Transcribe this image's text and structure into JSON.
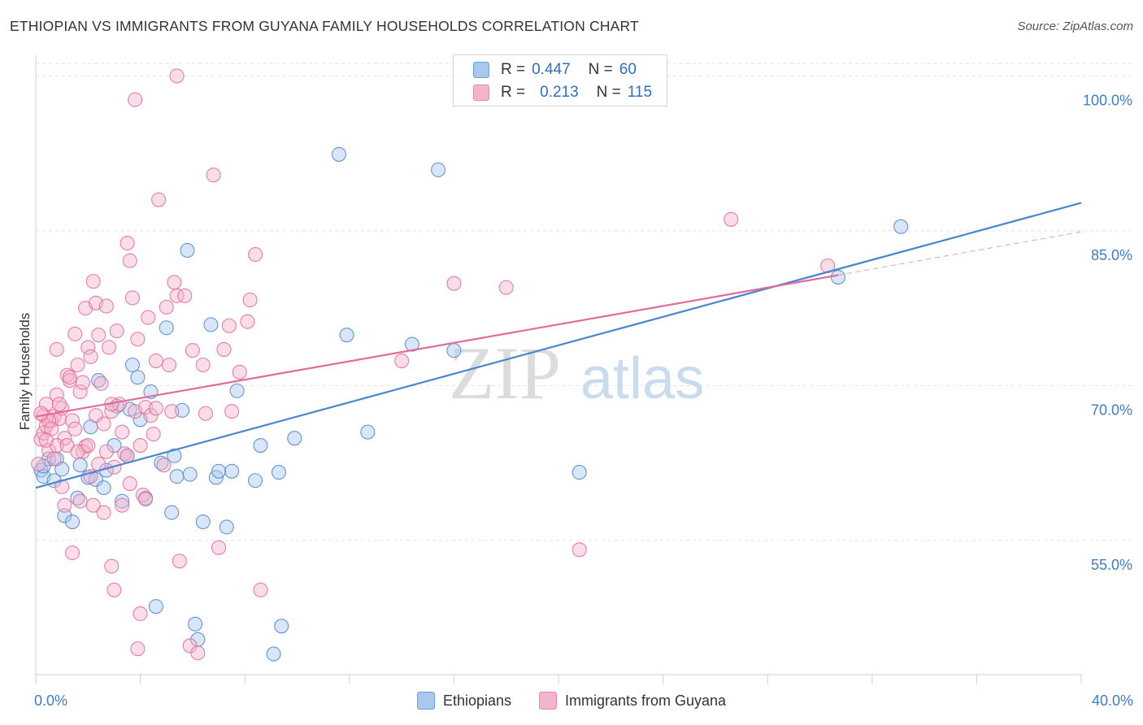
{
  "header": {
    "title": "ETHIOPIAN VS IMMIGRANTS FROM GUYANA FAMILY HOUSEHOLDS CORRELATION CHART",
    "source": "Source: ZipAtlas.com"
  },
  "watermark": {
    "zip": "ZIP",
    "atlas": "atlas"
  },
  "legend": {
    "rows": [
      {
        "r_label": "R =",
        "r_value": "0.447",
        "n_label": "N =",
        "n_value": "60",
        "color": "#a8c8ee"
      },
      {
        "r_label": "R =",
        "r_value": "0.213",
        "n_label": "N =",
        "n_value": "115",
        "color": "#f4b4cb"
      }
    ]
  },
  "bottom_legend": [
    {
      "label": "Ethiopians",
      "color": "#a8c8ee"
    },
    {
      "label": "Immigrants from Guyana",
      "color": "#f4b4cb"
    }
  ],
  "chart_data": {
    "type": "scatter",
    "title": "ETHIOPIAN VS IMMIGRANTS FROM GUYANA FAMILY HOUSEHOLDS CORRELATION CHART",
    "ylabel": "Family Households",
    "xlim": [
      0,
      40
    ],
    "ylim": [
      42,
      102
    ],
    "x_tick_labels": [
      "0.0%",
      "40.0%"
    ],
    "y_ticks": [
      55,
      70,
      85,
      100
    ],
    "y_tick_labels": [
      "55.0%",
      "70.0%",
      "85.0%",
      "100.0%"
    ],
    "grid": true,
    "legend_placement": "top-center",
    "series": [
      {
        "name": "Ethiopians",
        "color": "#4a86d0",
        "fill": "#a8c8ee",
        "trend": {
          "x": [
            0,
            40
          ],
          "y": [
            60.1,
            87.7
          ]
        },
        "points": [
          [
            0.2,
            61.8
          ],
          [
            0.3,
            61.2
          ],
          [
            0.5,
            62.9
          ],
          [
            0.7,
            60.8
          ],
          [
            0.8,
            62.9
          ],
          [
            1.0,
            61.9
          ],
          [
            1.1,
            57.4
          ],
          [
            1.4,
            56.8
          ],
          [
            1.6,
            59.1
          ],
          [
            1.7,
            62.3
          ],
          [
            2.0,
            61.1
          ],
          [
            2.1,
            66.0
          ],
          [
            2.3,
            60.9
          ],
          [
            2.4,
            70.5
          ],
          [
            2.6,
            60.1
          ],
          [
            2.7,
            61.8
          ],
          [
            3.0,
            64.2
          ],
          [
            3.1,
            68.0
          ],
          [
            3.3,
            58.8
          ],
          [
            3.5,
            63.2
          ],
          [
            3.6,
            67.7
          ],
          [
            3.7,
            72.0
          ],
          [
            3.9,
            70.8
          ],
          [
            4.0,
            66.7
          ],
          [
            4.2,
            59.1
          ],
          [
            4.4,
            69.4
          ],
          [
            4.6,
            48.6
          ],
          [
            4.8,
            62.5
          ],
          [
            5.0,
            75.6
          ],
          [
            5.2,
            57.7
          ],
          [
            5.3,
            63.2
          ],
          [
            5.4,
            61.2
          ],
          [
            5.6,
            67.6
          ],
          [
            5.8,
            83.1
          ],
          [
            5.9,
            61.4
          ],
          [
            6.1,
            46.9
          ],
          [
            6.2,
            45.4
          ],
          [
            6.4,
            56.8
          ],
          [
            6.7,
            75.9
          ],
          [
            6.9,
            61.1
          ],
          [
            7.0,
            61.7
          ],
          [
            7.3,
            56.3
          ],
          [
            7.5,
            61.7
          ],
          [
            7.7,
            69.5
          ],
          [
            8.4,
            60.8
          ],
          [
            8.6,
            64.2
          ],
          [
            9.1,
            44.0
          ],
          [
            9.3,
            61.6
          ],
          [
            9.4,
            46.7
          ],
          [
            9.9,
            64.9
          ],
          [
            11.6,
            92.4
          ],
          [
            11.9,
            74.9
          ],
          [
            12.7,
            65.5
          ],
          [
            14.4,
            74.0
          ],
          [
            15.4,
            90.9
          ],
          [
            16.0,
            73.4
          ],
          [
            20.8,
            61.6
          ],
          [
            30.7,
            80.5
          ],
          [
            33.1,
            85.4
          ],
          [
            0.3,
            62.2
          ]
        ]
      },
      {
        "name": "Immigrants from Guyana",
        "color": "#e26b98",
        "fill": "#f4b4cb",
        "trend": {
          "x": [
            0,
            30.7
          ],
          "y": [
            67.0,
            80.7
          ]
        },
        "trend_dashed": {
          "x": [
            30.7,
            40
          ],
          "y": [
            80.7,
            84.9
          ]
        },
        "points": [
          [
            0.1,
            62.4
          ],
          [
            0.2,
            64.8
          ],
          [
            0.3,
            65.4
          ],
          [
            0.3,
            67.1
          ],
          [
            0.4,
            66.1
          ],
          [
            0.5,
            63.7
          ],
          [
            0.6,
            66.6
          ],
          [
            0.7,
            67.0
          ],
          [
            0.8,
            73.5
          ],
          [
            0.8,
            69.1
          ],
          [
            0.9,
            66.8
          ],
          [
            1.0,
            67.8
          ],
          [
            1.1,
            64.9
          ],
          [
            1.2,
            71.0
          ],
          [
            1.3,
            70.5
          ],
          [
            1.4,
            66.6
          ],
          [
            1.5,
            75.0
          ],
          [
            1.6,
            72.0
          ],
          [
            1.7,
            69.4
          ],
          [
            1.8,
            70.3
          ],
          [
            1.9,
            64.1
          ],
          [
            1.9,
            77.5
          ],
          [
            2.0,
            73.7
          ],
          [
            2.1,
            72.8
          ],
          [
            2.2,
            80.1
          ],
          [
            2.3,
            78.0
          ],
          [
            2.3,
            67.1
          ],
          [
            2.4,
            74.9
          ],
          [
            2.5,
            70.2
          ],
          [
            2.6,
            66.3
          ],
          [
            2.7,
            77.7
          ],
          [
            2.8,
            73.7
          ],
          [
            2.9,
            67.5
          ],
          [
            3.0,
            62.1
          ],
          [
            3.1,
            75.3
          ],
          [
            3.2,
            68.2
          ],
          [
            3.3,
            65.5
          ],
          [
            3.4,
            63.4
          ],
          [
            3.5,
            83.8
          ],
          [
            3.6,
            82.1
          ],
          [
            3.7,
            78.5
          ],
          [
            3.8,
            67.5
          ],
          [
            3.9,
            74.5
          ],
          [
            4.0,
            64.2
          ],
          [
            4.1,
            59.4
          ],
          [
            4.2,
            67.9
          ],
          [
            4.3,
            76.6
          ],
          [
            4.4,
            67.1
          ],
          [
            4.5,
            65.3
          ],
          [
            4.6,
            72.4
          ],
          [
            4.7,
            88.0
          ],
          [
            4.9,
            62.3
          ],
          [
            5.0,
            77.6
          ],
          [
            5.1,
            72.0
          ],
          [
            5.2,
            67.5
          ],
          [
            5.3,
            80.0
          ],
          [
            5.4,
            78.7
          ],
          [
            5.5,
            53.0
          ],
          [
            5.7,
            78.7
          ],
          [
            5.9,
            44.8
          ],
          [
            6.0,
            73.4
          ],
          [
            6.2,
            44.1
          ],
          [
            6.4,
            72.0
          ],
          [
            6.5,
            67.3
          ],
          [
            6.8,
            90.4
          ],
          [
            7.0,
            54.3
          ],
          [
            7.2,
            73.5
          ],
          [
            7.4,
            75.8
          ],
          [
            7.5,
            67.5
          ],
          [
            7.8,
            71.3
          ],
          [
            8.1,
            76.2
          ],
          [
            8.2,
            78.3
          ],
          [
            8.4,
            82.7
          ],
          [
            8.6,
            50.2
          ],
          [
            3.8,
            97.7
          ],
          [
            5.4,
            100.0
          ],
          [
            2.9,
            52.5
          ],
          [
            3.0,
            50.2
          ],
          [
            3.5,
            63.2
          ],
          [
            1.4,
            53.8
          ],
          [
            2.2,
            58.4
          ],
          [
            1.7,
            58.8
          ],
          [
            1.1,
            58.4
          ],
          [
            4.0,
            47.9
          ],
          [
            3.9,
            44.5
          ],
          [
            2.6,
            57.7
          ],
          [
            0.5,
            66.6
          ],
          [
            0.6,
            65.8
          ],
          [
            0.8,
            64.2
          ],
          [
            1.2,
            64.2
          ],
          [
            1.5,
            65.8
          ],
          [
            1.8,
            63.6
          ],
          [
            2.1,
            61.2
          ],
          [
            2.4,
            62.4
          ],
          [
            2.7,
            63.6
          ],
          [
            3.6,
            60.5
          ],
          [
            4.2,
            59.0
          ],
          [
            0.4,
            68.2
          ],
          [
            0.9,
            68.2
          ],
          [
            1.3,
            70.8
          ],
          [
            14.0,
            72.4
          ],
          [
            16.0,
            79.9
          ],
          [
            18.0,
            79.5
          ],
          [
            20.8,
            54.1
          ],
          [
            26.6,
            86.1
          ],
          [
            30.3,
            81.6
          ],
          [
            1.6,
            63.6
          ],
          [
            2.9,
            68.2
          ],
          [
            0.2,
            67.3
          ],
          [
            0.7,
            62.9
          ],
          [
            1.0,
            60.2
          ],
          [
            2.0,
            64.2
          ],
          [
            3.3,
            58.4
          ],
          [
            4.6,
            67.8
          ],
          [
            0.4,
            64.7
          ]
        ]
      }
    ]
  }
}
